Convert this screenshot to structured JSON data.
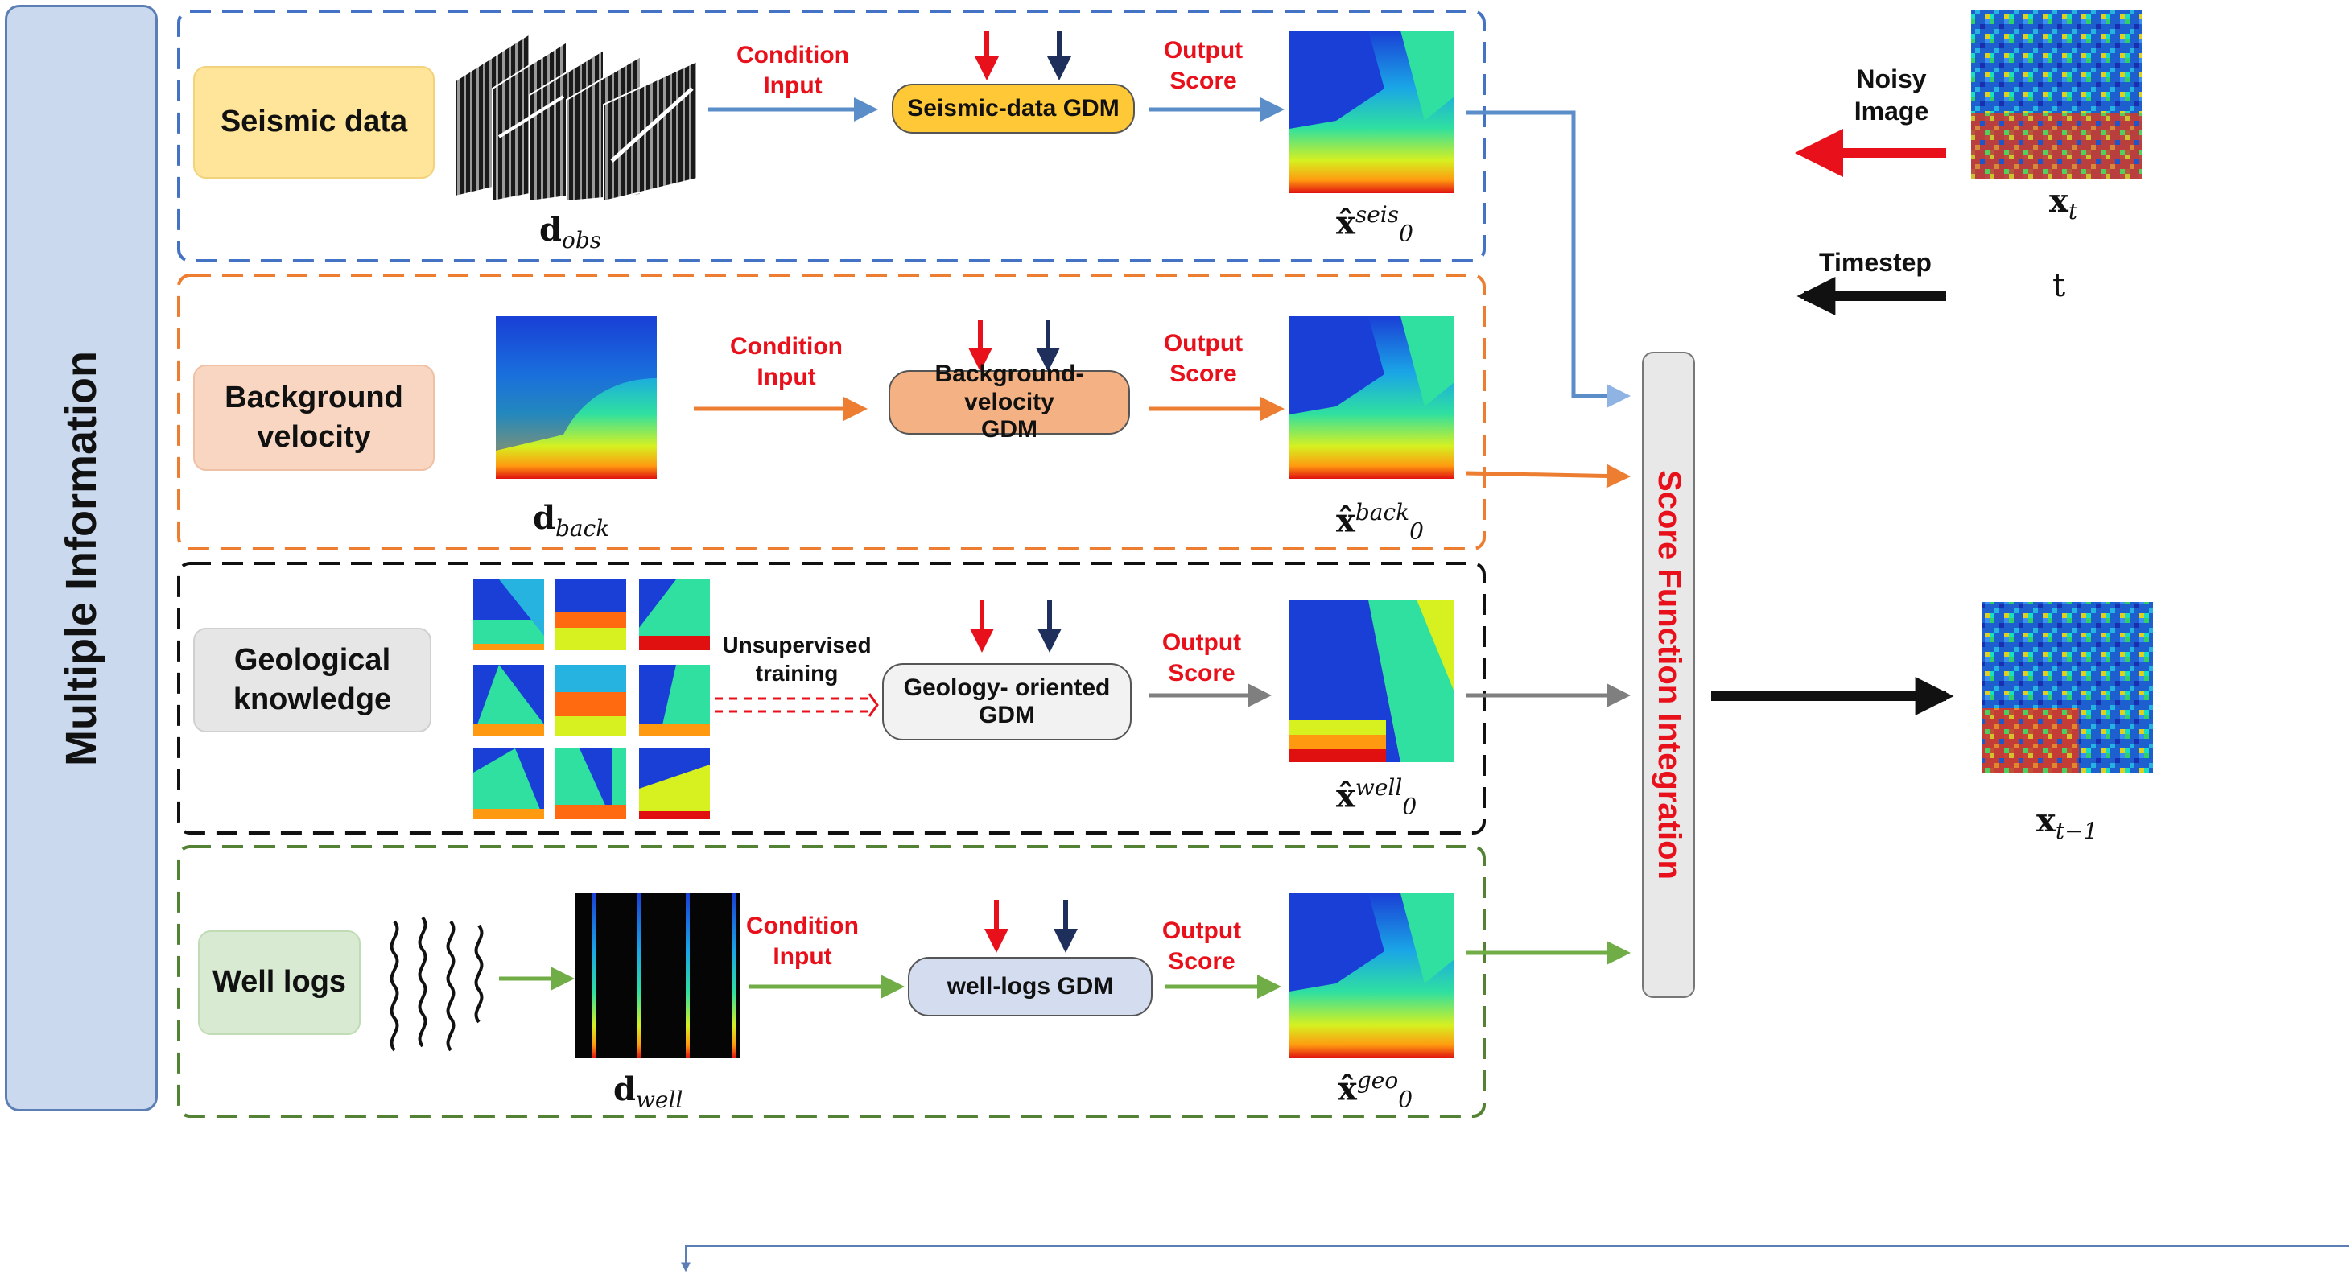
{
  "side_title": "Multiple Information",
  "rows": [
    {
      "source": "Seismic data",
      "data_label": "d",
      "data_sub": "obs",
      "edge_top": "Condition",
      "edge_bottom": "Input",
      "gdm": "Seismic-data GDM",
      "out_top": "Output",
      "out_bottom": "Score",
      "x0_sup": "seis"
    },
    {
      "source_line1": "Background",
      "source_line2": "velocity",
      "data_label": "d",
      "data_sub": "back",
      "edge_top": "Condition",
      "edge_bottom": "Input",
      "gdm_line1": "Background-velocity",
      "gdm_line2": "GDM",
      "out_top": "Output",
      "out_bottom": "Score",
      "x0_sup": "back"
    },
    {
      "source_line1": "Geological",
      "source_line2": "knowledge",
      "edge_top": "Unsupervised",
      "edge_bottom": "training",
      "gdm_line1": "Geology- oriented",
      "gdm_line2": "GDM",
      "out_top": "Output",
      "out_bottom": "Score",
      "x0_sup": "well"
    },
    {
      "source": "Well logs",
      "data_label": "d",
      "data_sub": "well",
      "edge_top": "Condition",
      "edge_bottom": "Input",
      "gdm": "well-logs GDM",
      "out_top": "Output",
      "out_bottom": "Score",
      "x0_sup": "geo"
    }
  ],
  "x0_base": "x̂",
  "x0_sub": "0",
  "score_integration": "Score Function Integration",
  "noisy_line1": "Noisy",
  "noisy_line2": "Image",
  "xt_label": "x",
  "xt_sub": "t",
  "timestep_label": "Timestep",
  "t_label": "t",
  "xt1_sub": "t−1",
  "colors": {
    "seismic_frame": "#4472c4",
    "background_frame": "#ed7d31",
    "geology_frame": "#111111",
    "well_frame": "#548235",
    "condition_text": "#e8101a",
    "score_text": "#e8101a"
  }
}
